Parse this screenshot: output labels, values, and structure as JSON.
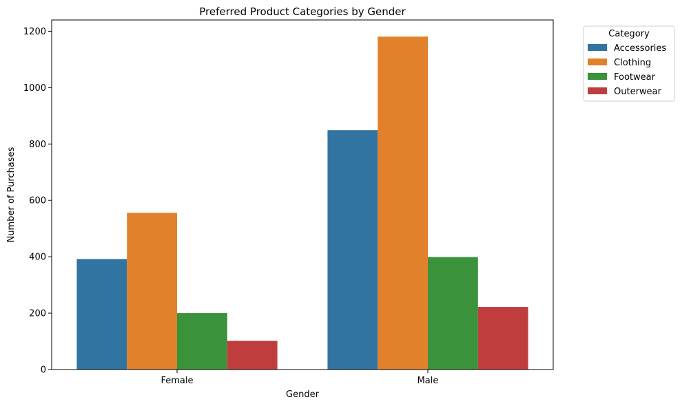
{
  "chart_data": {
    "type": "bar",
    "title": "Preferred Product Categories by Gender",
    "xlabel": "Gender",
    "ylabel": "Number of Purchases",
    "categories": [
      "Female",
      "Male"
    ],
    "ylim": [
      0,
      1240
    ],
    "yticks": [
      0,
      200,
      400,
      600,
      800,
      1000,
      1200
    ],
    "grid": false,
    "legend": {
      "title": "Category",
      "placement": "outside-top-right"
    },
    "series": [
      {
        "name": "Accessories",
        "color": "#3274a1",
        "values": [
          392,
          849
        ]
      },
      {
        "name": "Clothing",
        "color": "#e1812c",
        "values": [
          556,
          1181
        ]
      },
      {
        "name": "Footwear",
        "color": "#3a923a",
        "values": [
          200,
          399
        ]
      },
      {
        "name": "Outerwear",
        "color": "#c03d3e",
        "values": [
          102,
          222
        ]
      }
    ]
  }
}
